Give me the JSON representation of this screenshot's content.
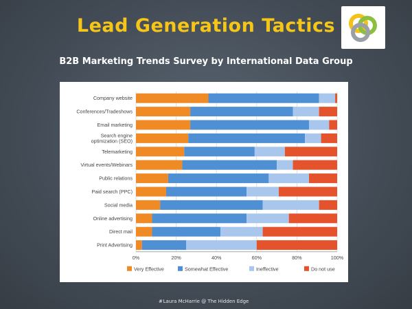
{
  "slide": {
    "title": "Lead Generation Tactics",
    "subtitle": "B2B Marketing Trends Survey by International Data Group",
    "footer_mark": "#",
    "footer": "Laura McHarrie @ The Hidden Edge",
    "logo_icon": "interlocking-rings-logo-icon"
  },
  "chart_data": {
    "type": "bar",
    "orientation": "horizontal",
    "stacked": true,
    "title": "",
    "xlabel": "",
    "ylabel": "",
    "xlim": [
      0,
      100
    ],
    "categories": [
      "Company website",
      "Conferences/Tradeshows",
      "Email marketing",
      "Search engine optimization (SEO)",
      "Telemarketing",
      "Virtual events/Webinars",
      "Public relations",
      "Paid search (PPC)",
      "Social media",
      "Online advertising",
      "Direct mail",
      "Print Advertising"
    ],
    "series": [
      {
        "name": "Very Effective",
        "color": "#f08a24",
        "values": [
          36,
          27,
          27,
          26,
          24,
          23,
          16,
          15,
          12,
          8,
          8,
          3
        ]
      },
      {
        "name": "Somewhat Effective",
        "color": "#4f8fd3",
        "values": [
          55,
          51,
          59,
          58,
          35,
          47,
          50,
          40,
          51,
          47,
          34,
          22
        ]
      },
      {
        "name": "Ineffective",
        "color": "#a9c7ec",
        "values": [
          8,
          13,
          10,
          8,
          15,
          8,
          20,
          16,
          28,
          21,
          21,
          35
        ]
      },
      {
        "name": "Do not use",
        "color": "#e5532c",
        "values": [
          1,
          9,
          4,
          8,
          26,
          22,
          14,
          29,
          9,
          24,
          37,
          40
        ]
      }
    ],
    "xticks": [
      "0%",
      "20%",
      "40%",
      "60%",
      "80%",
      "100%"
    ],
    "xtick_values": [
      0,
      20,
      40,
      60,
      80,
      100
    ],
    "grid": true,
    "legend_position": "bottom"
  }
}
